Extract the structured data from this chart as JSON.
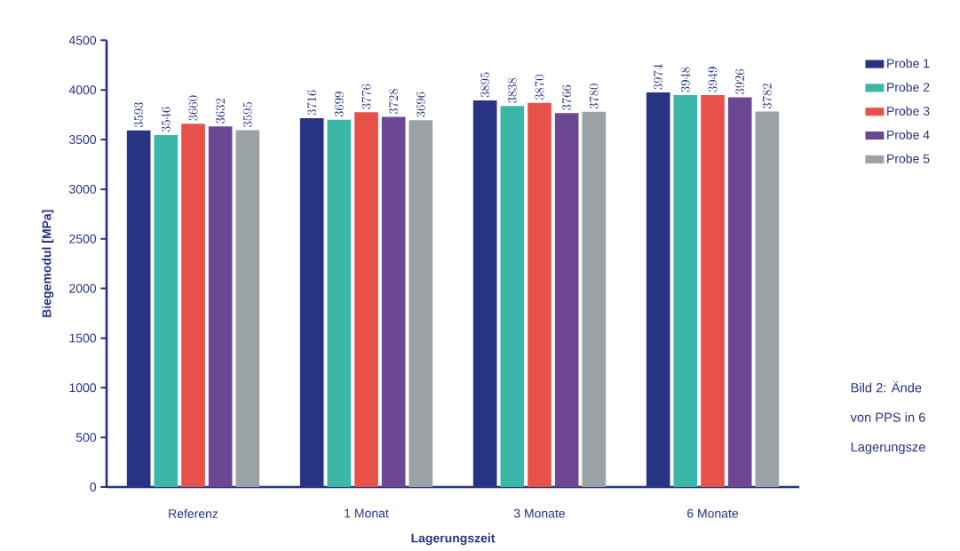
{
  "chart_data": {
    "type": "bar",
    "xlabel": "Lagerungszeit",
    "ylabel": "Biegemodul [MPa]",
    "categories": [
      "Referenz",
      "1 Monat",
      "3 Monate",
      "6 Monate"
    ],
    "series": [
      {
        "name": "Probe 1",
        "color": "#283483",
        "values": [
          3593,
          3716,
          3895,
          3974
        ]
      },
      {
        "name": "Probe 2",
        "color": "#3bb7a8",
        "values": [
          3546,
          3699,
          3838,
          3948
        ]
      },
      {
        "name": "Probe 3",
        "color": "#e8504a",
        "values": [
          3660,
          3776,
          3870,
          3949
        ]
      },
      {
        "name": "Probe 4",
        "color": "#6c4894",
        "values": [
          3632,
          3728,
          3766,
          3926
        ]
      },
      {
        "name": "Probe 5",
        "color": "#9ba2a5",
        "values": [
          3595,
          3696,
          3780,
          3782
        ]
      }
    ],
    "ylim": [
      0,
      4500
    ],
    "yticks": [
      0,
      500,
      1000,
      1500,
      2000,
      2500,
      3000,
      3500,
      4000,
      4500
    ],
    "data_labels": true,
    "legend": "right",
    "grid": false,
    "annotations": [
      "Bild 2: Ände",
      "von PPS in 6",
      "Lagerungsze"
    ]
  }
}
